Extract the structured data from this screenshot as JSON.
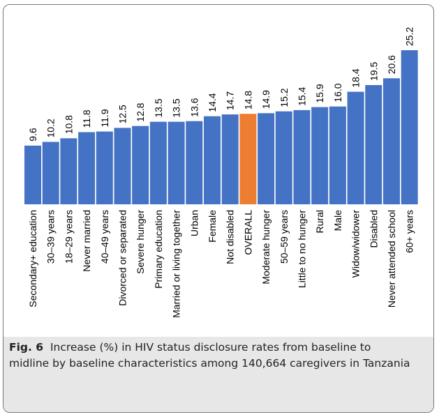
{
  "chart_data": {
    "type": "bar",
    "categories": [
      "Secondary+ education",
      "30–39 years",
      "18–29 years",
      "Never married",
      "40–49 years",
      "Divorced or separated",
      "Severe hunger",
      "Primary education",
      "Married or living together",
      "Urban",
      "Female",
      "Not disabled",
      "OVERALL",
      "Moderate hunger",
      "50–59 years",
      "Little to no hunger",
      "Rural",
      "Male",
      "Widow/widower",
      "Disabled",
      "Never attended school",
      "60+ years"
    ],
    "values": [
      9.6,
      10.2,
      10.8,
      11.8,
      11.9,
      12.5,
      12.8,
      13.5,
      13.5,
      13.6,
      14.4,
      14.7,
      14.8,
      14.9,
      15.2,
      15.4,
      15.9,
      16.0,
      18.4,
      19.5,
      20.6,
      25.2
    ],
    "value_labels": [
      "9.6",
      "10.2",
      "10.8",
      "11.8",
      "11.9",
      "12.5",
      "12.8",
      "13.5",
      "13.5",
      "13.6",
      "14.4",
      "14.7",
      "14.8",
      "14.9",
      "15.2",
      "15.4",
      "15.9",
      "16.0",
      "18.4",
      "19.5",
      "20.6",
      "25.2"
    ],
    "highlight_index": 12,
    "bar_color": "#4472c4",
    "highlight_color": "#ed7d31",
    "ylim": [
      0,
      25.2
    ],
    "grid": false,
    "legend": "none"
  },
  "caption": {
    "label": "Fig. 6",
    "text": "Increase (%) in HIV status disclosure rates from baseline to midline by baseline characteristics among 140,664 caregivers in Tanzania"
  }
}
